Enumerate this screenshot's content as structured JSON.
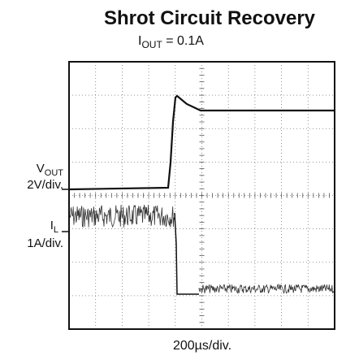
{
  "title": "Shrot Circuit Recovery",
  "subtitle": {
    "symbol": "I",
    "subscript": "OUT",
    "rest": " = 0.1A"
  },
  "vout_label": {
    "symbol": "V",
    "subscript": "OUT",
    "scale": "2V/div."
  },
  "il_label": {
    "symbol": "I",
    "subscript": "L",
    "scale": "1A/div."
  },
  "time_scale": "200µs/div."
}
